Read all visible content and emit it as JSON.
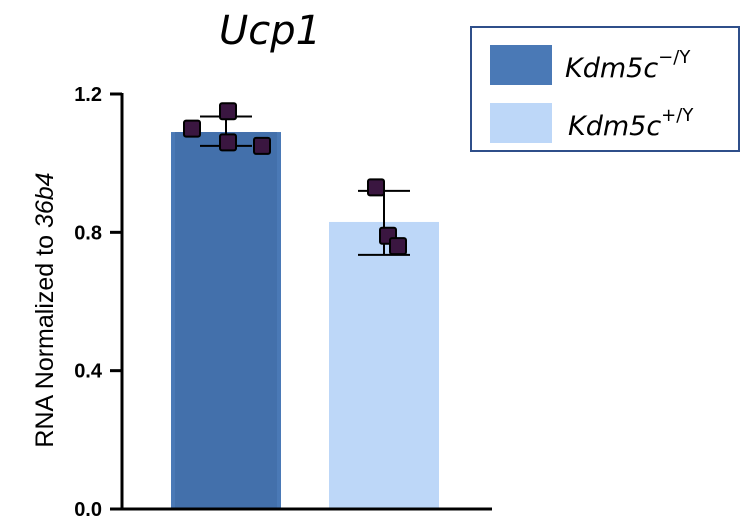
{
  "chart_data": {
    "type": "bar",
    "title": "Ucp1",
    "ylabel_prefix": "RNA Normalized to ",
    "ylabel_italic": "36b4",
    "ylim": [
      0,
      1.2
    ],
    "yticks": [
      0.0,
      0.4,
      0.8,
      1.2
    ],
    "ytick_labels": [
      "0.0",
      "0.4",
      "0.8",
      "1.2"
    ],
    "categories": [
      "Kdm5c−/Y",
      "Kdm5c+/Y"
    ],
    "series": [
      {
        "name": "Kdm5c−/Y",
        "legend_base": "Kdm5c",
        "legend_sup": "−/Y",
        "color": "#4a79b6",
        "mean": 1.09,
        "error_high": 1.135,
        "error_low": 1.05,
        "points": [
          1.1,
          1.15,
          1.06,
          1.05
        ]
      },
      {
        "name": "Kdm5c+/Y",
        "legend_base": "Kdm5c",
        "legend_sup": "+/Y",
        "color": "#bdd7f8",
        "mean": 0.83,
        "error_high": 0.92,
        "error_low": 0.735,
        "points": [
          0.93,
          0.79,
          0.76
        ]
      }
    ],
    "point_color": "#3a1640",
    "legend_position": "top-right"
  }
}
